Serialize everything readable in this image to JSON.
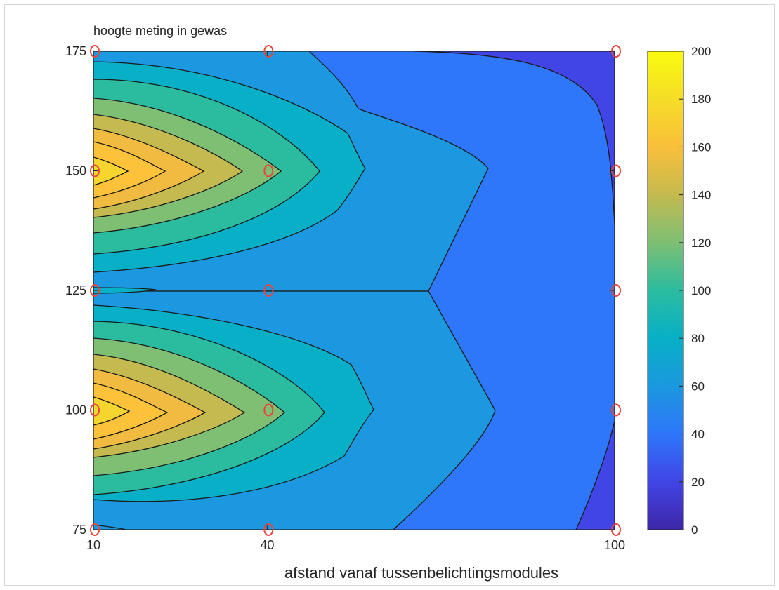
{
  "chart_data": {
    "type": "contour",
    "title": "hoogte meting in gewas",
    "xlabel": "afstand vanaf tussenbelichtingsmodules",
    "ylabel": "",
    "x_ticks": [
      10,
      40,
      100
    ],
    "y_ticks": [
      75,
      100,
      125,
      150,
      175
    ],
    "xlim": [
      10,
      100
    ],
    "ylim": [
      75,
      175
    ],
    "levels": [
      0,
      20,
      40,
      60,
      80,
      100,
      120,
      140,
      160,
      180,
      200
    ],
    "colorbar": {
      "ticks": [
        0,
        20,
        40,
        60,
        80,
        100,
        120,
        140,
        160,
        180,
        200
      ],
      "range": [
        0,
        200
      ],
      "colors": [
        "#3e26a8",
        "#4145e6",
        "#2e76fa",
        "#1b98df",
        "#07b0c6",
        "#2bbca0",
        "#7ebf74",
        "#c4ba4f",
        "#f9bf3a",
        "#f5dd28",
        "#f9fb0e"
      ]
    },
    "measurement_points": {
      "marker": "circle",
      "color": "#e8453c",
      "x": [
        10,
        10,
        10,
        10,
        10,
        40,
        40,
        40,
        40,
        40,
        100,
        100,
        100,
        100,
        100
      ],
      "y": [
        75,
        100,
        125,
        150,
        175,
        75,
        100,
        125,
        150,
        175,
        75,
        100,
        125,
        150,
        175
      ]
    },
    "grid": false
  }
}
